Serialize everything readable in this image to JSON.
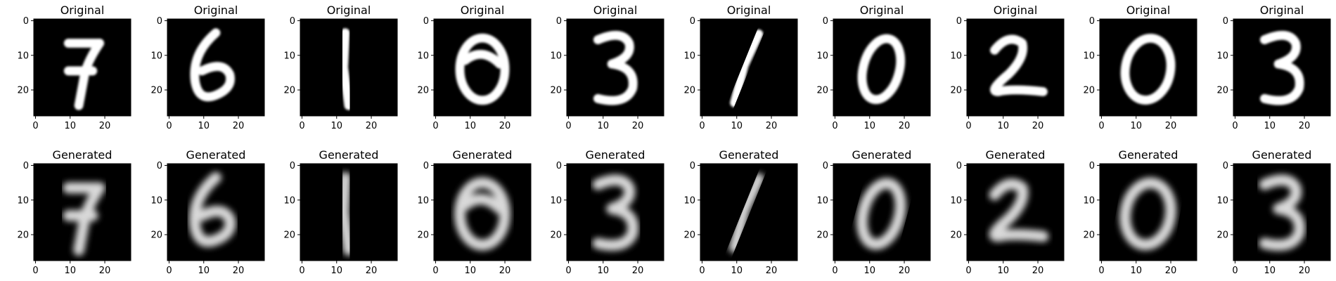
{
  "chart_data": {
    "type": "heatmap",
    "description_rows": [
      "Original",
      "Generated"
    ],
    "row_titles": {
      "original": "Original",
      "generated": "Generated"
    },
    "digits": [
      "7",
      "6",
      "1",
      "0",
      "3",
      "1",
      "0",
      "2",
      "0",
      "3"
    ],
    "image_size": [
      28,
      28
    ],
    "xticks": [
      "0",
      "10",
      "20"
    ],
    "yticks": [
      "0",
      "10",
      "20"
    ],
    "tick_values": [
      0,
      10,
      20
    ],
    "colormap": "gray",
    "grid": false
  },
  "colors": {
    "background": "#ffffff",
    "image_background": "#000000",
    "stroke": "#ffffff"
  }
}
